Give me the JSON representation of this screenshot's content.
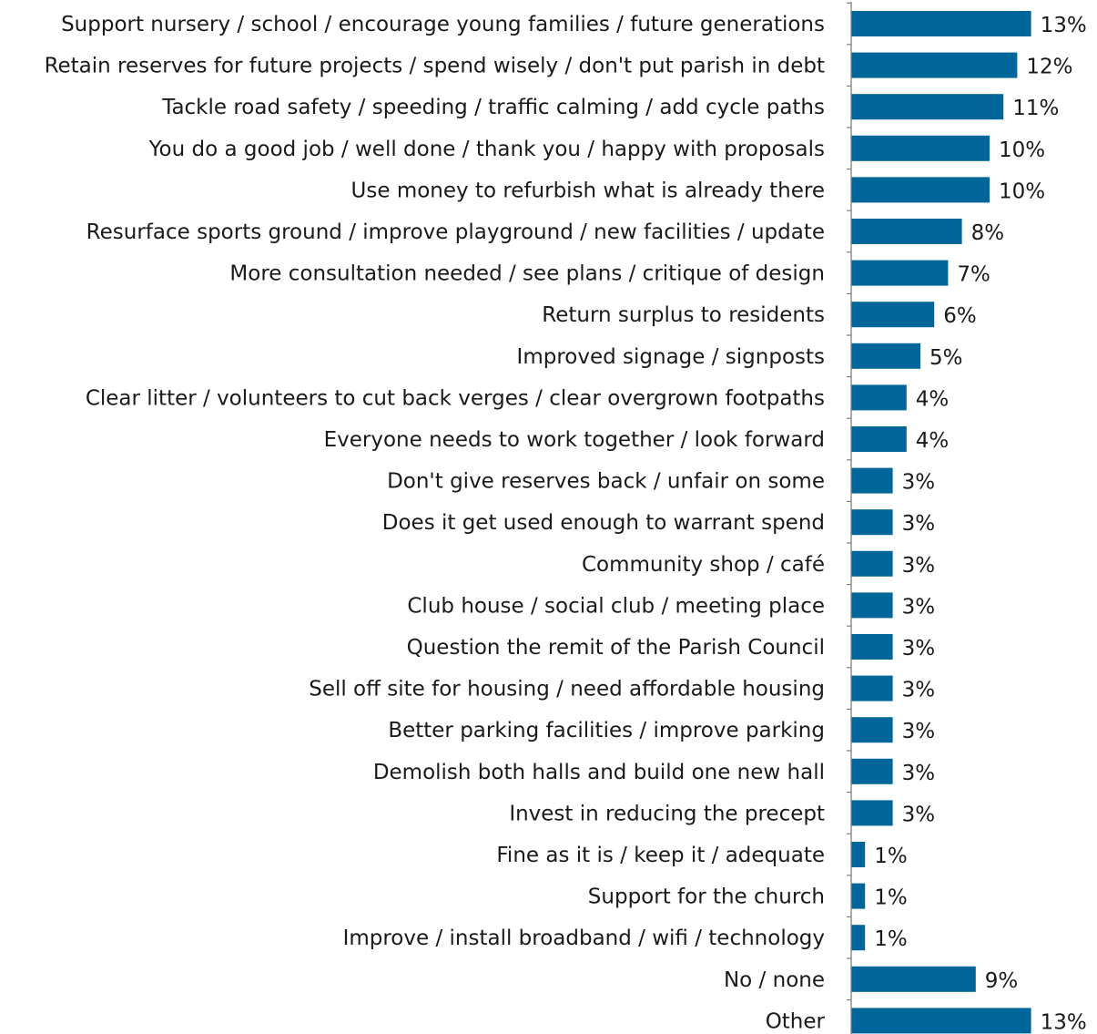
{
  "chart_data": {
    "type": "bar",
    "orientation": "horizontal",
    "categories": [
      "Support nursery / school / encourage young families / future generations",
      "Retain reserves for future projects / spend wisely / don't put parish in debt",
      "Tackle road safety  / speeding / traffic calming / add cycle paths",
      "You do a good job / well done / thank you / happy with proposals",
      "Use money to refurbish what is already there",
      "Resurface sports ground  / improve playground / new facilities / update",
      "More consultation needed / see plans / critique of design",
      "Return surplus to residents",
      "Improved signage / signposts",
      "Clear litter / volunteers to cut back verges / clear overgrown footpaths",
      "Everyone needs to work together / look forward",
      "Don't give reserves back / unfair on some",
      "Does it get used enough to warrant spend",
      "Community shop / café",
      "Club house / social club / meeting place",
      "Question the remit of the Parish Council",
      "Sell off site for housing /  need affordable housing",
      "Better parking facilities / improve parking",
      "Demolish both halls and build one new hall",
      "Invest in reducing the precept",
      "Fine as it is / keep it / adequate",
      "Support for the church",
      "Improve / install broadband / wifi / technology",
      "No / none",
      "Other"
    ],
    "values": [
      13,
      12,
      11,
      10,
      10,
      8,
      7,
      6,
      5,
      4,
      4,
      3,
      3,
      3,
      3,
      3,
      3,
      3,
      3,
      3,
      1,
      1,
      1,
      9,
      13
    ],
    "value_labels": [
      "13%",
      "12%",
      "11%",
      "10%",
      "10%",
      "8%",
      "7%",
      "6%",
      "5%",
      "4%",
      "4%",
      "3%",
      "3%",
      "3%",
      "3%",
      "3%",
      "3%",
      "3%",
      "3%",
      "3%",
      "1%",
      "1%",
      "1%",
      "9%",
      "13%"
    ],
    "unit": "%",
    "bar_color": "#00659b",
    "axis_color": "#7f7f7f",
    "xlim": [
      0,
      13
    ],
    "grid": false,
    "legend": "none"
  }
}
